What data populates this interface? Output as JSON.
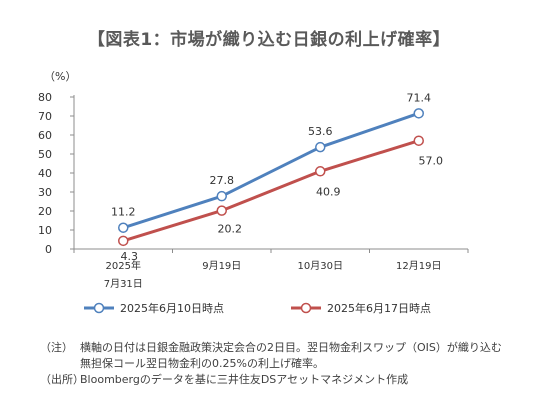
{
  "title": "【図表1：市場が織り込む日銀の利上げ確率】",
  "chart_data": {
    "type": "line",
    "yunit": "（%）",
    "ylim": [
      0,
      80
    ],
    "yticks": [
      0,
      10,
      20,
      30,
      40,
      50,
      60,
      70,
      80
    ],
    "categories": [
      [
        "2025年",
        "7月31日"
      ],
      [
        "9月19日"
      ],
      [
        "10月30日"
      ],
      [
        "12月19日"
      ]
    ],
    "series": [
      {
        "name": "2025年6月10日時点",
        "values": [
          11.2,
          27.8,
          53.6,
          71.4
        ],
        "color": "#4f81bd"
      },
      {
        "name": "2025年6月17日時点",
        "values": [
          4.3,
          20.2,
          40.9,
          57.0
        ],
        "color": "#c0504d"
      }
    ],
    "data_labels": [
      [
        "11.2",
        "27.8",
        "53.6",
        "71.4"
      ],
      [
        "4.3",
        "20.2",
        "40.9",
        "57.0"
      ]
    ],
    "grid": false,
    "legend": "bottom"
  },
  "notes": [
    {
      "tag": "（注）",
      "lines": [
        "横軸の日付は日銀金融政策決定会合の2日目。翌日物金利スワップ（OIS）が織り込む",
        "無担保コール翌日物金利の0.25%の利上げ確率。"
      ]
    },
    {
      "tag": "（出所）",
      "lines": [
        "Bloombergのデータを基に三井住友DSアセットマネジメント作成"
      ]
    }
  ]
}
